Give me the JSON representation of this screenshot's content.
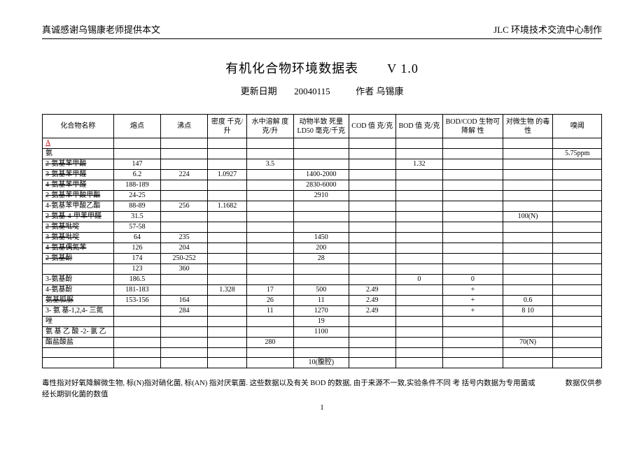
{
  "header": {
    "left": "真诚感谢乌锡康老师提供本文",
    "right": "JLC 环境技术交流中心制作"
  },
  "title": {
    "main": "有机化合物环境数据表",
    "version": "V 1.0",
    "update_label": "更新日期",
    "update_date": "20040115",
    "author_label": "作者",
    "author": "乌锡康"
  },
  "columns": [
    "化合物名称",
    "熔点",
    "沸点",
    "密度\n千克/\n升",
    "水中溶解\n度 克/升",
    "动物半致\n死量 LD50\n毫克/千克",
    "COD 值\n克/克",
    "BOD 值\n克/克",
    "BOD/COD\n生物可降解\n性",
    "对微生物\n的毒性",
    "嗅阈"
  ],
  "section_letter": "A",
  "rows": [
    {
      "name": "氨",
      "mp": "",
      "bp": "",
      "den": "",
      "sol": "",
      "ld": "",
      "cod": "",
      "bod": "",
      "bio": "",
      "tox": "",
      "odor": "5.75ppm",
      "strike": false
    },
    {
      "name": "2-氨基苯甲酸",
      "mp": "147",
      "bp": "",
      "den": "",
      "sol": "3.5",
      "ld": "",
      "cod": "",
      "bod": "1.32",
      "bio": "",
      "tox": "",
      "odor": "",
      "strike": true
    },
    {
      "name": "3-氨基苯甲醛",
      "mp": "6.2",
      "bp": "224",
      "den": "1.0927",
      "sol": "",
      "ld": "1400-2000",
      "cod": "",
      "bod": "",
      "bio": "",
      "tox": "",
      "odor": "",
      "strike": true
    },
    {
      "name": "4-氨基苯甲醛",
      "mp": "188-189",
      "bp": "",
      "den": "",
      "sol": "",
      "ld": "2830-6000",
      "cod": "",
      "bod": "",
      "bio": "",
      "tox": "",
      "odor": "",
      "strike": true
    },
    {
      "name": "2-氨基苯甲酸甲酯",
      "mp": "24-25",
      "bp": "",
      "den": "",
      "sol": "",
      "ld": "2910",
      "cod": "",
      "bod": "",
      "bio": "",
      "tox": "",
      "odor": "",
      "strike": true
    },
    {
      "name": "4-氨基苯甲酸乙酯",
      "mp": "88-89",
      "bp": "256",
      "den": "1.1682",
      "sol": "",
      "ld": "",
      "cod": "",
      "bod": "",
      "bio": "",
      "tox": "",
      "odor": "",
      "strike": false
    },
    {
      "name": "2-氨基-4-甲苯甲醛",
      "mp": "31.5",
      "bp": "",
      "den": "",
      "sol": "",
      "ld": "",
      "cod": "",
      "bod": "",
      "bio": "",
      "tox": "100(N)",
      "odor": "",
      "strike": true
    },
    {
      "name": "2-氨基吡啶",
      "mp": "57-58",
      "bp": "",
      "den": "",
      "sol": "",
      "ld": "",
      "cod": "",
      "bod": "",
      "bio": "",
      "tox": "",
      "odor": "",
      "strike": true
    },
    {
      "name": "3-氨基吡啶",
      "mp": "64",
      "bp": "235",
      "den": "",
      "sol": "",
      "ld": "1450",
      "cod": "",
      "bod": "",
      "bio": "",
      "tox": "",
      "odor": "",
      "strike": true
    },
    {
      "name": "4-氨基偶氮苯",
      "mp": "126",
      "bp": "204",
      "den": "",
      "sol": "",
      "ld": "200",
      "cod": "",
      "bod": "",
      "bio": "",
      "tox": "",
      "odor": "",
      "strike": true
    },
    {
      "name": "2-氨基酚",
      "mp": "174",
      "bp": "250-252",
      "den": "",
      "sol": "",
      "ld": "28",
      "cod": "",
      "bod": "",
      "bio": "",
      "tox": "",
      "odor": "",
      "strike": true
    },
    {
      "name": "",
      "mp": "123",
      "bp": "360",
      "den": "",
      "sol": "",
      "ld": "",
      "cod": "",
      "bod": "",
      "bio": "",
      "tox": "",
      "odor": "",
      "strike": false
    },
    {
      "name": "3-氨基酚",
      "mp": "186.5",
      "bp": "",
      "den": "",
      "sol": "",
      "ld": "",
      "cod": "",
      "bod": "0",
      "bio": "0",
      "tox": "",
      "odor": "",
      "strike": false
    },
    {
      "name": "4-氨基酚",
      "mp": "181-183",
      "bp": "",
      "den": "1.328",
      "sol": "17",
      "ld": "500",
      "cod": "2.49",
      "bod": "",
      "bio": "+",
      "tox": "",
      "odor": "",
      "strike": false
    },
    {
      "name": "氨基胍脲",
      "mp": "153-156",
      "bp": "164",
      "den": "",
      "sol": "26",
      "ld": "11",
      "cod": "2.49",
      "bod": "",
      "bio": "+",
      "tox": "0.6",
      "odor": "",
      "strike": true
    },
    {
      "name": "3- 氨 基-1,2,4- 三氮",
      "mp": "",
      "bp": "284",
      "den": "",
      "sol": "11",
      "ld": "1270",
      "cod": "2.49",
      "bod": "",
      "bio": "+",
      "tox": "8 10",
      "odor": "",
      "strike": false
    },
    {
      "name": "唑",
      "mp": "",
      "bp": "",
      "den": "",
      "sol": "",
      "ld": "19",
      "cod": "",
      "bod": "",
      "bio": "",
      "tox": "",
      "odor": "",
      "strike": false
    },
    {
      "name": "氨 基 乙 酸 -2- 氯 乙",
      "mp": "",
      "bp": "",
      "den": "",
      "sol": "",
      "ld": "1100",
      "cod": "",
      "bod": "",
      "bio": "",
      "tox": "",
      "odor": "",
      "strike": false
    },
    {
      "name": "酯盐酸盐",
      "mp": "",
      "bp": "",
      "den": "",
      "sol": "280",
      "ld": "",
      "cod": "",
      "bod": "",
      "bio": "",
      "tox": "70(N)",
      "odor": "",
      "strike": false
    },
    {
      "name": "",
      "mp": "",
      "bp": "",
      "den": "",
      "sol": "",
      "ld": "",
      "cod": "",
      "bod": "",
      "bio": "",
      "tox": "",
      "odor": "",
      "strike": false
    },
    {
      "name": "",
      "mp": "",
      "bp": "",
      "den": "",
      "sol": "",
      "ld": "10(腹腔)",
      "cod": "",
      "bod": "",
      "bio": "",
      "tox": "",
      "odor": "",
      "strike": false
    }
  ],
  "footnote": {
    "left": "毒性指对好氧降解微生物, 标(N)指对硝化菌, 标(AN) 指对厌氧菌. 这些数据以及有关 BOD 的数据, 由于来源不一致,实验条件不同 考 括号内数据为专用菌或经长期驯化菌的数值",
    "right": "数据仅供参"
  },
  "page_number": "1"
}
